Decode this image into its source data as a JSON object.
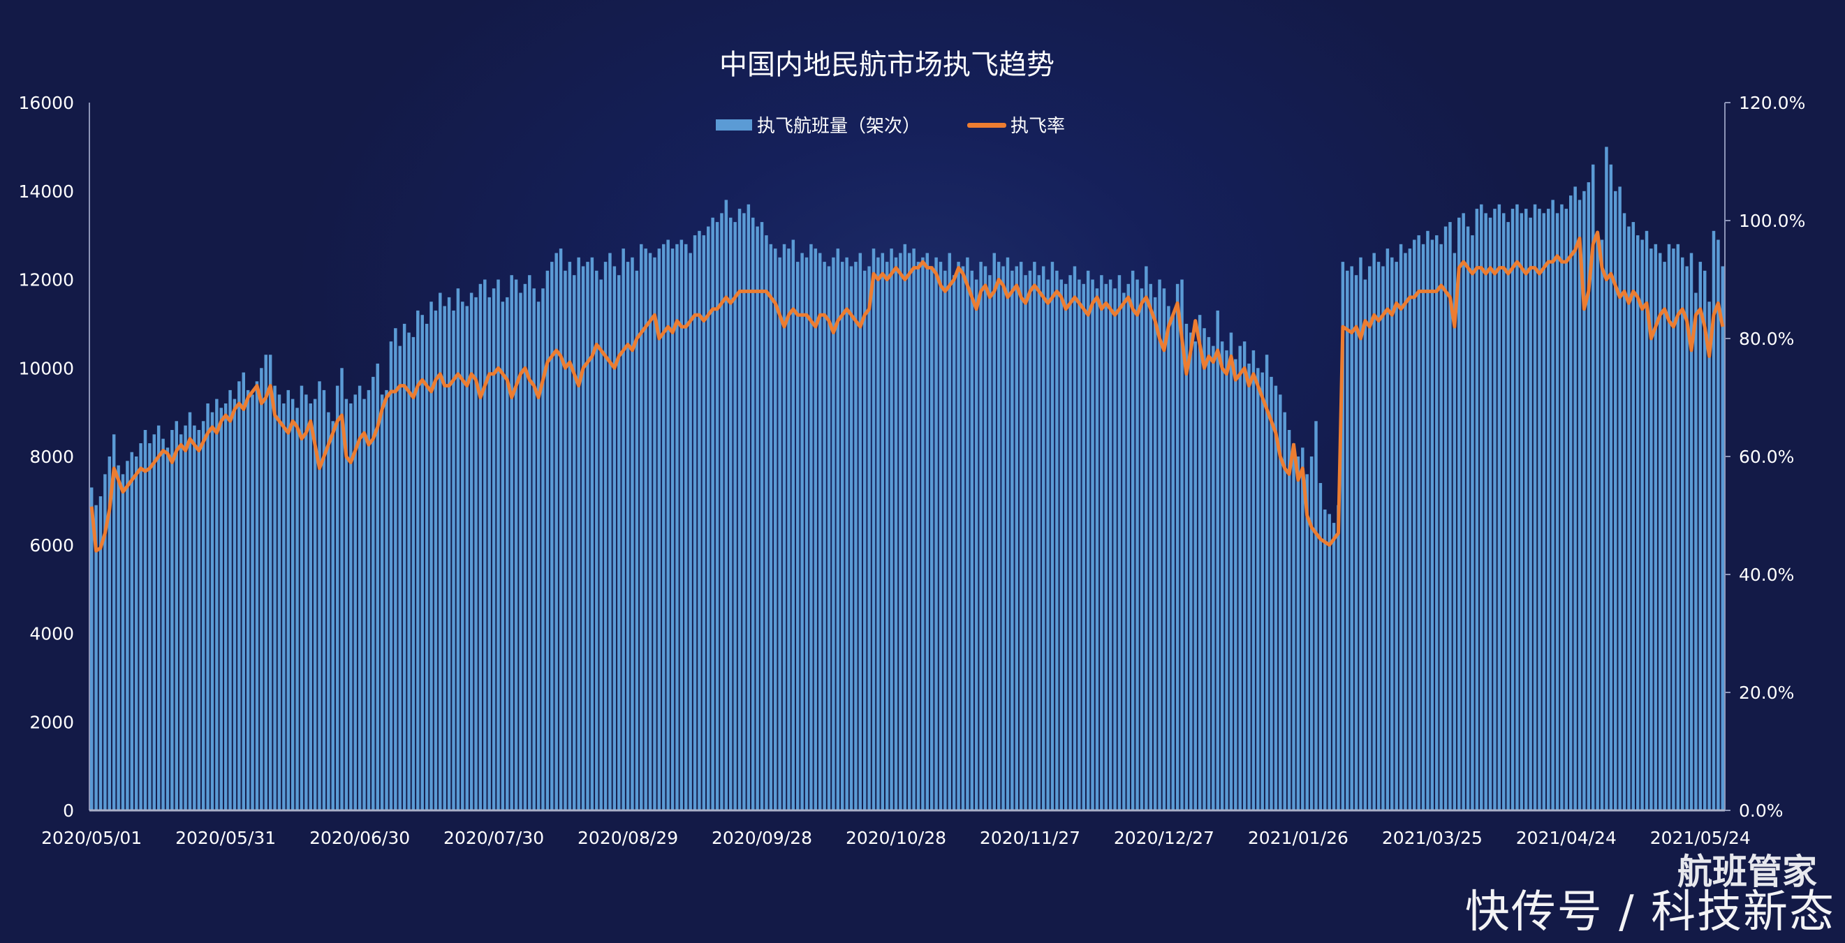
{
  "chart_data": {
    "type": "bar+line",
    "title": "中国内地民航市场执飞趋势",
    "legend": {
      "placement": "top-center"
    },
    "x_tick_labels": [
      "2020/05/01",
      "2020/05/31",
      "2020/06/30",
      "2020/07/30",
      "2020/08/29",
      "2020/09/28",
      "2020/10/28",
      "2020/11/27",
      "2020/12/27",
      "2021/01/26",
      "2021/03/25",
      "2021/04/24",
      "2021/05/24"
    ],
    "x_tick_every": 30,
    "y_left": {
      "min": 0,
      "max": 16000,
      "step": 2000
    },
    "y_right": {
      "min": 0,
      "max": 120,
      "step": 20,
      "unit": "%"
    },
    "grid": false,
    "colors": {
      "bar": "#5b9bd5",
      "line": "#ed7d31",
      "background": "#131a47"
    },
    "series": [
      {
        "name": "执飞航班量（架次）",
        "type": "bar",
        "axis": "left",
        "values": [
          7300,
          6900,
          7100,
          7600,
          8000,
          8500,
          7800,
          7600,
          7900,
          8100,
          8000,
          8300,
          8600,
          8300,
          8500,
          8700,
          8400,
          8200,
          8600,
          8800,
          8500,
          8700,
          9000,
          8700,
          8600,
          8800,
          9200,
          9000,
          9300,
          9100,
          9200,
          9500,
          9300,
          9700,
          9900,
          9500,
          9400,
          9700,
          10000,
          10300,
          10300,
          9600,
          9400,
          9200,
          9500,
          9300,
          9100,
          9600,
          9400,
          9200,
          9300,
          9700,
          9500,
          9000,
          8800,
          9600,
          10000,
          9300,
          9200,
          9400,
          9600,
          9300,
          9500,
          9800,
          10100,
          9400,
          9500,
          10600,
          10900,
          10500,
          11000,
          10800,
          10700,
          11300,
          11200,
          11000,
          11500,
          11300,
          11700,
          11400,
          11600,
          11300,
          11800,
          11500,
          11400,
          11700,
          11600,
          11900,
          12000,
          11600,
          11800,
          12000,
          11500,
          11600,
          12100,
          12000,
          11700,
          11900,
          12100,
          11800,
          11500,
          11800,
          12200,
          12400,
          12600,
          12700,
          12200,
          12400,
          12100,
          12500,
          12300,
          12400,
          12500,
          12200,
          12000,
          12400,
          12600,
          12300,
          12100,
          12700,
          12400,
          12500,
          12200,
          12800,
          12700,
          12600,
          12500,
          12700,
          12800,
          12900,
          12700,
          12800,
          12900,
          12800,
          12600,
          13000,
          13100,
          13000,
          13200,
          13400,
          13300,
          13500,
          13800,
          13400,
          13300,
          13600,
          13500,
          13700,
          13400,
          13200,
          13300,
          13000,
          12800,
          12700,
          12500,
          12800,
          12700,
          12900,
          12400,
          12600,
          12500,
          12800,
          12700,
          12600,
          12400,
          12300,
          12500,
          12700,
          12400,
          12500,
          12300,
          12400,
          12600,
          12200,
          12300,
          12700,
          12500,
          12600,
          12400,
          12700,
          12500,
          12600,
          12800,
          12600,
          12700,
          12400,
          12500,
          12600,
          12300,
          12500,
          12400,
          12200,
          12600,
          12100,
          12400,
          12300,
          12500,
          12200,
          12000,
          12400,
          12300,
          12100,
          12600,
          12400,
          12300,
          12500,
          12200,
          12300,
          12400,
          12100,
          12200,
          12400,
          12100,
          12300,
          12000,
          12400,
          12200,
          12000,
          11900,
          12100,
          12300,
          12000,
          11900,
          12200,
          12000,
          11800,
          12100,
          11900,
          12000,
          11800,
          12100,
          11700,
          11900,
          12200,
          12000,
          11800,
          12300,
          11900,
          11600,
          12000,
          11800,
          11400,
          11200,
          11900,
          12000,
          11000,
          10800,
          10600,
          11200,
          10900,
          10700,
          10500,
          11300,
          10600,
          10400,
          10800,
          10200,
          10500,
          10600,
          10100,
          10400,
          10000,
          9900,
          10300,
          9800,
          9600,
          9400,
          9000,
          8600,
          8300,
          8000,
          8200,
          7600,
          8000,
          8800,
          7400,
          6800,
          6700,
          6500,
          6900,
          12400,
          12200,
          12300,
          12100,
          12500,
          12000,
          12300,
          12600,
          12400,
          12300,
          12700,
          12500,
          12400,
          12800,
          12600,
          12700,
          12900,
          13000,
          12800,
          13100,
          12900,
          13000,
          12800,
          13200,
          13300,
          12600,
          13400,
          13500,
          13200,
          13000,
          13600,
          13700,
          13500,
          13400,
          13600,
          13700,
          13500,
          13300,
          13600,
          13700,
          13500,
          13600,
          13400,
          13700,
          13600,
          13500,
          13600,
          13800,
          13500,
          13700,
          13600,
          13900,
          14100,
          13800,
          14000,
          14200,
          14600,
          13000,
          12900,
          15000,
          14600,
          14000,
          14100,
          13500,
          13200,
          13300,
          13000,
          12900,
          13100,
          12700,
          12800,
          12600,
          12400,
          12800,
          12700,
          12800,
          12500,
          12300,
          12600,
          11700,
          12400,
          12200,
          11500,
          13100,
          12900,
          12300
        ]
      },
      {
        "name": "执飞率",
        "type": "line",
        "axis": "right",
        "values": [
          51.5,
          44,
          44.5,
          47,
          51,
          58,
          56,
          54,
          55,
          56,
          57,
          58,
          57.5,
          58,
          59,
          60,
          61,
          60.5,
          59,
          61,
          62,
          61,
          63,
          62,
          61,
          62.5,
          64,
          65,
          64,
          66,
          67,
          66,
          68,
          69,
          68,
          70,
          71,
          72,
          69,
          70,
          72,
          67,
          66,
          65,
          64,
          66,
          65,
          63,
          64,
          66,
          62,
          58,
          60,
          62,
          64,
          66,
          67,
          60,
          59,
          61,
          63,
          64,
          62,
          63,
          65,
          68,
          70,
          71,
          71,
          72,
          72,
          71,
          70,
          72,
          73,
          72,
          71,
          73,
          74,
          72,
          72,
          73,
          74,
          73,
          72,
          74,
          73,
          70,
          72,
          74,
          74,
          75,
          74,
          73,
          70,
          72,
          74,
          75,
          73,
          72,
          70,
          73,
          76,
          77,
          78,
          77,
          75,
          76,
          74,
          72,
          75,
          76,
          77,
          79,
          78,
          77,
          76,
          75,
          77,
          78,
          79,
          78,
          80,
          81,
          82,
          83,
          84,
          80,
          81,
          82,
          81,
          83,
          82,
          82,
          83,
          84,
          84,
          83,
          84,
          85,
          85,
          86,
          87,
          86,
          87,
          88,
          88,
          88,
          88,
          88,
          88,
          88,
          87,
          86,
          84,
          82,
          84,
          85,
          84,
          84,
          84,
          83,
          82,
          84,
          84,
          83,
          81,
          83,
          84,
          85,
          84,
          83,
          82,
          84,
          85,
          91,
          90,
          91,
          90,
          91,
          92,
          91,
          90,
          91,
          92,
          92,
          93,
          92,
          92,
          91,
          89,
          88,
          89,
          90,
          92,
          91,
          89,
          87,
          85,
          88,
          89,
          87,
          88,
          90,
          89,
          87,
          88,
          89,
          87,
          86,
          88,
          89,
          88,
          87,
          86,
          87,
          88,
          87,
          85,
          86,
          87,
          86,
          85,
          84,
          86,
          87,
          85,
          86,
          85,
          84,
          85,
          86,
          87,
          85,
          84,
          86,
          87,
          85,
          83,
          80,
          78,
          82,
          84,
          86,
          80,
          74,
          78,
          83,
          79,
          75,
          77,
          76,
          78,
          75,
          74,
          77,
          73,
          74,
          75,
          72,
          74,
          72,
          70,
          68,
          66,
          64,
          60,
          58,
          57,
          62,
          56,
          58,
          50,
          48,
          47,
          46,
          45.5,
          45,
          46,
          47,
          82,
          81.5,
          81,
          82,
          80,
          83,
          82,
          84,
          83,
          84,
          85,
          84,
          86,
          85,
          86,
          87,
          87,
          88,
          88,
          88,
          88,
          88,
          89,
          88,
          87,
          82,
          92,
          93,
          92,
          91,
          92,
          92,
          91,
          92,
          91,
          92,
          92,
          91,
          92,
          93,
          92,
          91,
          92,
          92,
          91,
          92,
          93,
          93,
          94,
          93,
          93,
          94,
          95,
          97,
          85,
          88,
          96,
          98,
          92,
          90,
          91,
          89,
          87,
          88,
          86,
          88,
          87,
          85,
          86,
          80,
          82,
          84,
          85,
          83,
          82,
          84,
          85,
          83,
          78,
          84,
          85,
          82,
          77,
          84,
          86,
          82
        ]
      }
    ]
  },
  "watermark": {
    "logo_text": "航班管家",
    "source_text": "快传号 / 科技新态"
  }
}
